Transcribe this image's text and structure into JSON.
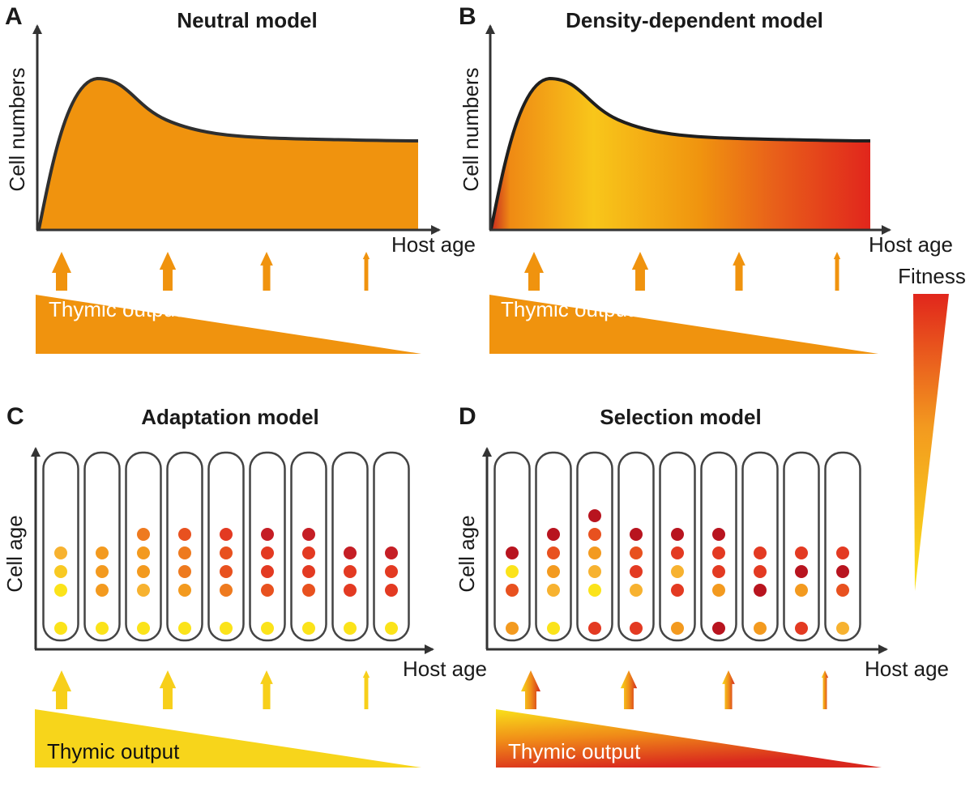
{
  "panels": {
    "A": {
      "letter": "A",
      "title": "Neutral model",
      "ylabel": "Cell numbers",
      "xlabel": "Host age",
      "bar_label": "Thymic output"
    },
    "B": {
      "letter": "B",
      "title": "Density-dependent model",
      "ylabel": "Cell numbers",
      "xlabel": "Host age",
      "bar_label": "Thymic output"
    },
    "C": {
      "letter": "C",
      "title": "Adaptation model",
      "ylabel": "Cell age",
      "xlabel": "Host age",
      "bar_label": "Thymic output"
    },
    "D": {
      "letter": "D",
      "title": "Selection model",
      "ylabel": "Cell age",
      "xlabel": "Host age",
      "bar_label": "Thymic output"
    }
  },
  "fitness_legend": {
    "label": "Fitness",
    "high_color": "#e1261c",
    "low_color": "#fbe31a"
  },
  "colors": {
    "orange": "#f0930e",
    "yellow": "#f7cf1a",
    "red": "#e33a22",
    "dark_red": "#b8141f",
    "outline": "#333333",
    "thymic_text_light": "#ffffff",
    "thymic_text_dark": "#111111"
  },
  "thymic_output_levels": [
    1.0,
    0.85,
    0.65,
    0.35
  ],
  "columns_C": [
    [
      "#fbe31a",
      "#fbe31a",
      "#f8c923",
      "#f7b230"
    ],
    [
      "#fbe31a",
      "#f39a1f",
      "#f39a1f",
      "#f39a1f"
    ],
    [
      "#fbe31a",
      "#f7b230",
      "#f39a1f",
      "#f39a1f",
      "#ee7a1f"
    ],
    [
      "#fbe31a",
      "#f39a1f",
      "#ee7a1f",
      "#ee7a1f",
      "#e8511f"
    ],
    [
      "#fbe31a",
      "#ee7a1f",
      "#e8511f",
      "#e8511f",
      "#e33a22"
    ],
    [
      "#fbe31a",
      "#e8511f",
      "#e33a22",
      "#e33a22",
      "#c51e25"
    ],
    [
      "#fbe31a",
      "#e8511f",
      "#e33a22",
      "#e33a22",
      "#c51e25"
    ],
    [
      "#fbe31a",
      "#e33a22",
      "#e33a22",
      "#c51e25"
    ],
    [
      "#fbe31a",
      "#e33a22",
      "#e33a22",
      "#c51e25"
    ]
  ],
  "columns_D": [
    [
      "#f39a1f",
      "#e8511f",
      "#fbe31a",
      "#b8141f"
    ],
    [
      "#fbe31a",
      "#f7b230",
      "#f39a1f",
      "#e8511f",
      "#b8141f"
    ],
    [
      "#e33a22",
      "#fbe31a",
      "#f7b230",
      "#f39a1f",
      "#e8511f",
      "#b8141f"
    ],
    [
      "#e33a22",
      "#f7b230",
      "#e33a22",
      "#e8511f",
      "#b8141f"
    ],
    [
      "#f39a1f",
      "#e33a22",
      "#f7b230",
      "#e33a22",
      "#b8141f"
    ],
    [
      "#b8141f",
      "#f39a1f",
      "#e33a22",
      "#e33a22",
      "#b8141f"
    ],
    [
      "#f39a1f",
      "#b8141f",
      "#e33a22",
      "#e33a22"
    ],
    [
      "#e33a22",
      "#f39a1f",
      "#b8141f",
      "#e33a22"
    ],
    [
      "#f7b230",
      "#e8511f",
      "#b8141f",
      "#e33a22"
    ]
  ]
}
